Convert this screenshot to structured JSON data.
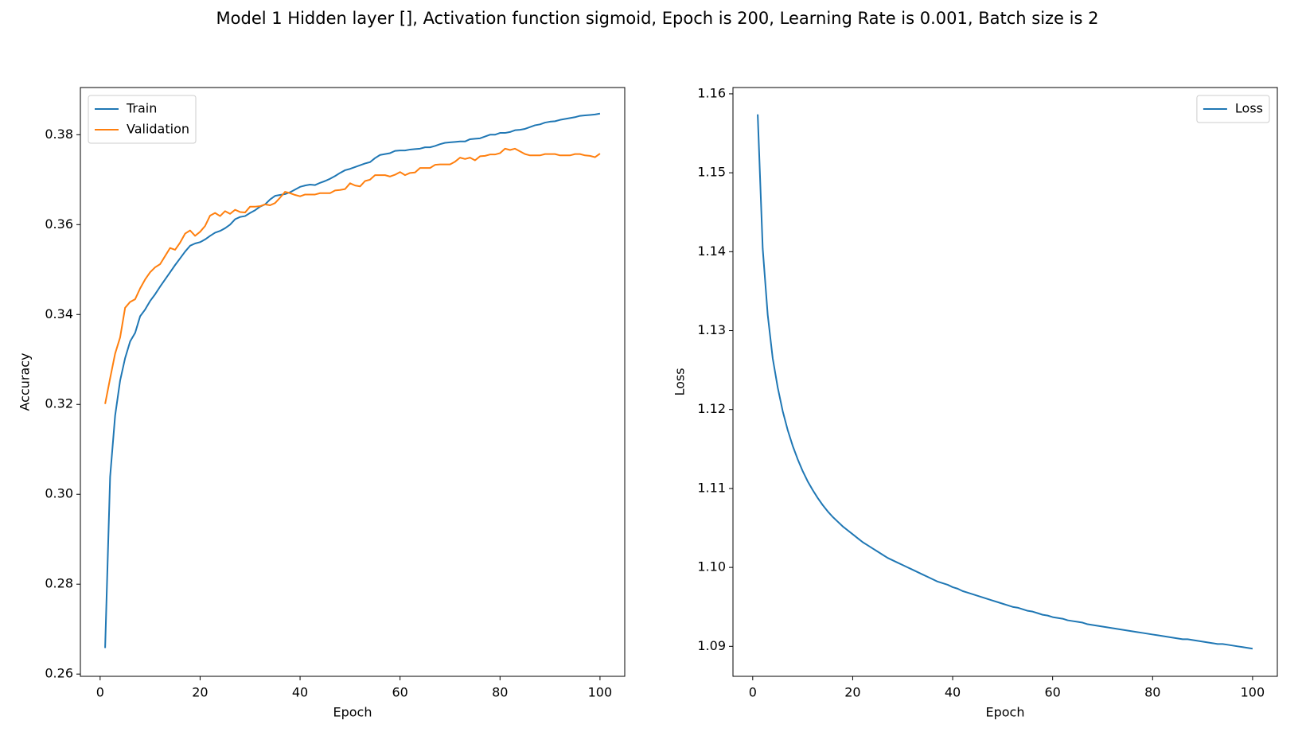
{
  "title": "Model 1 Hidden layer [], Activation function sigmoid, Epoch is 200, Learning Rate is 0.001, Batch size is 2",
  "chart_data": [
    {
      "type": "line",
      "xlabel": "Epoch",
      "ylabel": "Accuracy",
      "legend": "upper left",
      "x": [
        1,
        2,
        3,
        4,
        5,
        6,
        7,
        8,
        9,
        10,
        11,
        12,
        13,
        14,
        15,
        16,
        17,
        18,
        19,
        20,
        21,
        22,
        23,
        24,
        25,
        26,
        27,
        28,
        29,
        30,
        31,
        32,
        33,
        34,
        35,
        36,
        37,
        38,
        39,
        40,
        41,
        42,
        43,
        44,
        45,
        46,
        47,
        48,
        49,
        50,
        51,
        52,
        53,
        54,
        55,
        56,
        57,
        58,
        59,
        60,
        61,
        62,
        63,
        64,
        65,
        66,
        67,
        68,
        69,
        70,
        71,
        72,
        73,
        74,
        75,
        76,
        77,
        78,
        79,
        80,
        81,
        82,
        83,
        84,
        85,
        86,
        87,
        88,
        89,
        90,
        91,
        92,
        93,
        94,
        95,
        96,
        97,
        98,
        99,
        100
      ],
      "xlim": [
        -3.95,
        104.95
      ],
      "xticks": [
        0,
        20,
        40,
        60,
        80,
        100
      ],
      "ylim": [
        0.2595,
        0.3905
      ],
      "yticks": [
        0.26,
        0.28,
        {
          "value": 0.3,
          "label": "0.30"
        },
        0.32,
        0.34,
        0.36,
        0.38
      ],
      "series": [
        {
          "name": "Train",
          "color": "#1f77b4",
          "values": [
            0.2658,
            0.3039,
            0.3175,
            0.3253,
            0.3303,
            0.334,
            0.3359,
            0.3396,
            0.3411,
            0.343,
            0.3445,
            0.3462,
            0.3478,
            0.3494,
            0.351,
            0.3525,
            0.354,
            0.3553,
            0.3558,
            0.3561,
            0.3567,
            0.3575,
            0.3582,
            0.3586,
            0.3592,
            0.36,
            0.3612,
            0.3617,
            0.3619,
            0.3626,
            0.3632,
            0.364,
            0.3645,
            0.3656,
            0.3664,
            0.3666,
            0.3668,
            0.3672,
            0.3678,
            0.3684,
            0.3687,
            0.3689,
            0.3688,
            0.3693,
            0.3697,
            0.3702,
            0.3708,
            0.3715,
            0.3721,
            0.3724,
            0.3728,
            0.3732,
            0.3736,
            0.3739,
            0.3748,
            0.3755,
            0.3757,
            0.3759,
            0.3764,
            0.3765,
            0.3765,
            0.3767,
            0.3768,
            0.3769,
            0.3772,
            0.3772,
            0.3775,
            0.3779,
            0.3782,
            0.3783,
            0.3784,
            0.3785,
            0.3785,
            0.379,
            0.3791,
            0.3792,
            0.3796,
            0.38,
            0.38,
            0.3804,
            0.3804,
            0.3806,
            0.381,
            0.3811,
            0.3813,
            0.3817,
            0.3821,
            0.3823,
            0.3827,
            0.3829,
            0.383,
            0.3833,
            0.3835,
            0.3837,
            0.3839,
            0.3842,
            0.3843,
            0.3844,
            0.3845,
            0.3847
          ]
        },
        {
          "name": "Validation",
          "color": "#ff7f0e",
          "values": [
            0.3201,
            0.3258,
            0.3313,
            0.3349,
            0.3415,
            0.3428,
            0.3434,
            0.3458,
            0.3478,
            0.3494,
            0.3505,
            0.3512,
            0.353,
            0.3548,
            0.3544,
            0.356,
            0.358,
            0.3587,
            0.3575,
            0.3584,
            0.3597,
            0.362,
            0.3626,
            0.3619,
            0.363,
            0.3624,
            0.3633,
            0.3628,
            0.3627,
            0.364,
            0.364,
            0.3641,
            0.3645,
            0.3643,
            0.3648,
            0.366,
            0.3673,
            0.367,
            0.3666,
            0.3663,
            0.3667,
            0.3667,
            0.3667,
            0.367,
            0.367,
            0.367,
            0.3676,
            0.3677,
            0.3679,
            0.3692,
            0.3687,
            0.3685,
            0.3697,
            0.37,
            0.371,
            0.371,
            0.371,
            0.3707,
            0.3711,
            0.3717,
            0.371,
            0.3715,
            0.3716,
            0.3726,
            0.3726,
            0.3726,
            0.3733,
            0.3734,
            0.3734,
            0.3734,
            0.374,
            0.3749,
            0.3746,
            0.3749,
            0.3743,
            0.3752,
            0.3753,
            0.3756,
            0.3756,
            0.3759,
            0.3769,
            0.3766,
            0.3769,
            0.3763,
            0.3757,
            0.3754,
            0.3754,
            0.3754,
            0.3757,
            0.3757,
            0.3757,
            0.3754,
            0.3754,
            0.3754,
            0.3757,
            0.3757,
            0.3754,
            0.3753,
            0.375,
            0.3758
          ]
        }
      ]
    },
    {
      "type": "line",
      "xlabel": "Epoch",
      "ylabel": "Loss",
      "legend": "upper right",
      "x": [
        1,
        2,
        3,
        4,
        5,
        6,
        7,
        8,
        9,
        10,
        11,
        12,
        13,
        14,
        15,
        16,
        17,
        18,
        19,
        20,
        21,
        22,
        23,
        24,
        25,
        26,
        27,
        28,
        29,
        30,
        31,
        32,
        33,
        34,
        35,
        36,
        37,
        38,
        39,
        40,
        41,
        42,
        43,
        44,
        45,
        46,
        47,
        48,
        49,
        50,
        51,
        52,
        53,
        54,
        55,
        56,
        57,
        58,
        59,
        60,
        61,
        62,
        63,
        64,
        65,
        66,
        67,
        68,
        69,
        70,
        71,
        72,
        73,
        74,
        75,
        76,
        77,
        78,
        79,
        80,
        81,
        82,
        83,
        84,
        85,
        86,
        87,
        88,
        89,
        90,
        91,
        92,
        93,
        94,
        95,
        96,
        97,
        98,
        99,
        100
      ],
      "xlim": [
        -3.95,
        104.95
      ],
      "xticks": [
        0,
        20,
        40,
        60,
        80,
        100
      ],
      "ylim": [
        1.0862,
        1.1608
      ],
      "yticks": [
        1.09,
        {
          "value": 1.1,
          "label": "1.10"
        },
        1.11,
        1.12,
        1.13,
        1.14,
        1.15,
        1.16
      ],
      "series": [
        {
          "name": "Loss",
          "color": "#1f77b4",
          "values": [
            1.1574,
            1.1404,
            1.132,
            1.1265,
            1.1228,
            1.1198,
            1.1174,
            1.1154,
            1.1137,
            1.1122,
            1.1109,
            1.1098,
            1.1088,
            1.1079,
            1.1071,
            1.1064,
            1.1058,
            1.1052,
            1.1047,
            1.1042,
            1.1037,
            1.1032,
            1.1028,
            1.1024,
            1.102,
            1.1016,
            1.1012,
            1.1009,
            1.1006,
            1.1003,
            1.1,
            1.0997,
            1.0994,
            1.0991,
            1.0988,
            1.0985,
            1.0982,
            1.098,
            1.0978,
            1.0975,
            1.0973,
            1.097,
            1.0968,
            1.0966,
            1.0964,
            1.0962,
            1.096,
            1.0958,
            1.0956,
            1.0954,
            1.0952,
            1.095,
            1.0949,
            1.0947,
            1.0945,
            1.0944,
            1.0942,
            1.094,
            1.0939,
            1.0937,
            1.0936,
            1.0935,
            1.0933,
            1.0932,
            1.0931,
            1.093,
            1.0928,
            1.0927,
            1.0926,
            1.0925,
            1.0924,
            1.0923,
            1.0922,
            1.0921,
            1.092,
            1.0919,
            1.0918,
            1.0917,
            1.0916,
            1.0915,
            1.0914,
            1.0913,
            1.0912,
            1.0911,
            1.091,
            1.0909,
            1.0909,
            1.0908,
            1.0907,
            1.0906,
            1.0905,
            1.0904,
            1.0903,
            1.0903,
            1.0902,
            1.0901,
            1.09,
            1.0899,
            1.0898,
            1.0897
          ]
        }
      ]
    }
  ]
}
